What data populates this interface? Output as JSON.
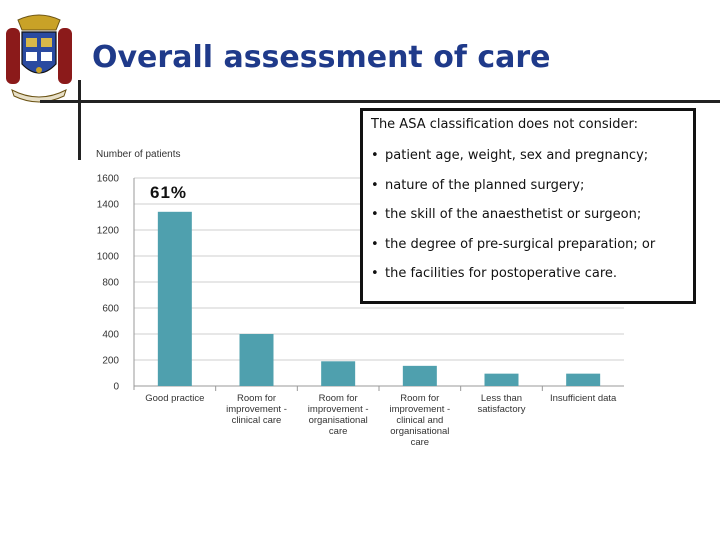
{
  "header": {
    "title": "Overall assessment of care"
  },
  "logo": {
    "name": "crest-icon"
  },
  "annotation": {
    "percent_label": "61%"
  },
  "callout": {
    "title": "The ASA classification does not consider:",
    "bullets": [
      "patient age, weight, sex and pregnancy;",
      "nature of the planned surgery;",
      "the skill of the anaesthetist or surgeon;",
      "the degree of pre-surgical preparation; or",
      "the facilities for postoperative care."
    ]
  },
  "chart_data": {
    "type": "bar",
    "title": "",
    "ylabel": "Number of patients",
    "xlabel": "",
    "ylim": [
      0,
      1600
    ],
    "yticks": [
      0,
      200,
      400,
      600,
      800,
      1000,
      1200,
      1400,
      1600
    ],
    "ytick_labels": [
      "0",
      "200",
      "400",
      "600",
      "800",
      "1000",
      "1200",
      "1400",
      "1600"
    ],
    "grid": true,
    "categories": [
      [
        "Good practice"
      ],
      [
        "Room for",
        "improvement -",
        "clinical care"
      ],
      [
        "Room for",
        "improvement -",
        "organisational",
        "care"
      ],
      [
        "Room for",
        "improvement -",
        "clinical  and",
        "organisational",
        "care"
      ],
      [
        "Less than",
        "satisfactory"
      ],
      [
        "Insufficient data"
      ]
    ],
    "values": [
      1340,
      400,
      190,
      155,
      95,
      95
    ],
    "color": "#4fa0ae"
  }
}
